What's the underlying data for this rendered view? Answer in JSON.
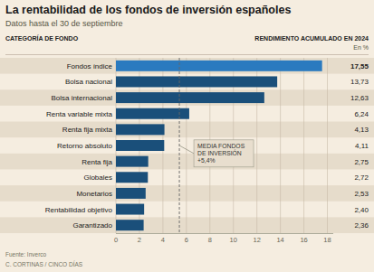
{
  "chart_data": {
    "type": "bar",
    "orientation": "horizontal",
    "title": "La rentabilidad de los fondos de inversión españoles",
    "subtitle": "Datos hasta el 30 de septiembre",
    "column_header_left": "CATEGORÍA DE FONDO",
    "column_header_right": "RENDIMIENTO ACUMULADO EN 2024",
    "column_header_right_sub": "En %",
    "categories": [
      "Fondos índice",
      "Bolsa nacional",
      "Bolsa internacional",
      "Renta variable mixta",
      "Renta fija mixta",
      "Retorno absoluto",
      "Renta fija",
      "Globales",
      "Monetarios",
      "Rentabilidad objetivo",
      "Garantizado"
    ],
    "values": [
      17.55,
      13.73,
      12.63,
      6.24,
      4.13,
      4.11,
      2.75,
      2.72,
      2.53,
      2.4,
      2.36
    ],
    "value_labels": [
      "17,55",
      "13,73",
      "12,63",
      "6,24",
      "4,13",
      "4,11",
      "2,75",
      "2,72",
      "2,53",
      "2,40",
      "2,36"
    ],
    "data_labels": true,
    "colors": [
      "#2a7abf",
      "#1a4f7a",
      "#1a4f7a",
      "#1a4f7a",
      "#1a4f7a",
      "#1a4f7a",
      "#1a4f7a",
      "#1a4f7a",
      "#1a4f7a",
      "#1a4f7a",
      "#1a4f7a"
    ],
    "xlim": [
      0,
      18.5
    ],
    "xticks": [
      0,
      2,
      4,
      6,
      8,
      10,
      12,
      14,
      16,
      18
    ],
    "grid": true,
    "reference_line": {
      "value": 5.4,
      "label": "MEDIA FONDOS\nDE INVERSIÓN\n+5,4%"
    },
    "source": "Fuente: Inverco",
    "author": "C. CORTINAS / CINCO DÍAS"
  }
}
